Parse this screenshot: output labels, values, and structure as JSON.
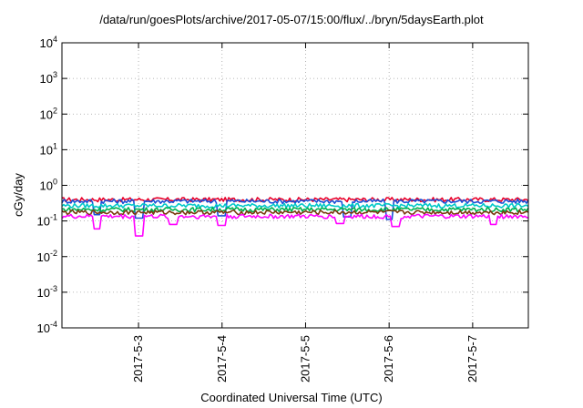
{
  "chart_data": {
    "type": "line",
    "title": "/data/run/goesPlots/archive/2017-05-07/15:00/flux/../bryn/5daysEarth.plot",
    "xlabel": "Coordinated Universal Time (UTC)",
    "ylabel": "cGy/day",
    "yscale": "log",
    "ylim": [
      0.0001,
      10000
    ],
    "y_ticks": [
      {
        "base": "10",
        "exp": "4"
      },
      {
        "base": "10",
        "exp": "3"
      },
      {
        "base": "10",
        "exp": "2"
      },
      {
        "base": "10",
        "exp": "1"
      },
      {
        "base": "10",
        "exp": "0"
      },
      {
        "base": "10",
        "exp": "-1"
      },
      {
        "base": "10",
        "exp": "-2"
      },
      {
        "base": "10",
        "exp": "-3"
      },
      {
        "base": "10",
        "exp": "-4"
      }
    ],
    "x_ticks": [
      "2017-5-3",
      "2017-5-4",
      "2017-5-5",
      "2017-5-6",
      "2017-5-7"
    ],
    "xlim": [
      "2017-05-02 02:00",
      "2017-05-07 16:00"
    ],
    "grid": true,
    "series": [
      {
        "color": "#e8002a",
        "level": 0.4,
        "dips": []
      },
      {
        "color": "#1b4fd6",
        "level": 0.36,
        "dips": [
          {
            "x": "2017-05-02 12:00",
            "y": 0.15
          },
          {
            "x": "2017-05-03 00:00",
            "y": 0.12
          },
          {
            "x": "2017-05-04 00:00",
            "y": 0.14
          },
          {
            "x": "2017-05-05 12:00",
            "y": 0.13
          },
          {
            "x": "2017-05-06 00:00",
            "y": 0.11
          }
        ]
      },
      {
        "color": "#00c8c8",
        "level": 0.27,
        "dips": []
      },
      {
        "color": "#00b050",
        "level": 0.21,
        "dips": []
      },
      {
        "color": "#7a3b10",
        "level": 0.175,
        "dips": []
      },
      {
        "color": "#ff00ff",
        "level": 0.135,
        "dips": [
          {
            "x": "2017-05-02 12:00",
            "y": 0.06
          },
          {
            "x": "2017-05-03 00:00",
            "y": 0.038
          },
          {
            "x": "2017-05-03 10:00",
            "y": 0.08
          },
          {
            "x": "2017-05-04 00:00",
            "y": 0.075
          },
          {
            "x": "2017-05-05 10:00",
            "y": 0.085
          },
          {
            "x": "2017-05-06 02:00",
            "y": 0.07
          },
          {
            "x": "2017-05-07 06:00",
            "y": 0.08
          }
        ]
      }
    ]
  }
}
